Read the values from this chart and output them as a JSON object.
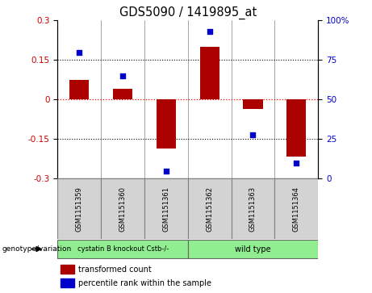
{
  "title": "GDS5090 / 1419895_at",
  "samples": [
    "GSM1151359",
    "GSM1151360",
    "GSM1151361",
    "GSM1151362",
    "GSM1151363",
    "GSM1151364"
  ],
  "bar_values": [
    0.075,
    0.04,
    -0.185,
    0.2,
    -0.035,
    -0.215
  ],
  "percentile_values": [
    80,
    65,
    5,
    93,
    28,
    10
  ],
  "ylim_left": [
    -0.3,
    0.3
  ],
  "ylim_right": [
    0,
    100
  ],
  "yticks_left": [
    -0.3,
    -0.15,
    0,
    0.15,
    0.3
  ],
  "yticks_right": [
    0,
    25,
    50,
    75,
    100
  ],
  "bar_color": "#aa0000",
  "dot_color": "#0000cc",
  "bar_width": 0.45,
  "dotted_lines": [
    -0.15,
    0.15
  ],
  "group1_label": "cystatin B knockout Cstb-/-",
  "group2_label": "wild type",
  "group1_indices": [
    0,
    1,
    2
  ],
  "group2_indices": [
    3,
    4,
    5
  ],
  "group1_color": "#90ee90",
  "group2_color": "#90ee90",
  "genotype_label": "genotype/variation",
  "legend_bar_label": "transformed count",
  "legend_dot_label": "percentile rank within the sample",
  "bg_color": "#d3d3d3",
  "plot_bg_color": "#ffffff",
  "right_axis_label_color": "#0000cc",
  "left_axis_label_color": "#cc0000"
}
